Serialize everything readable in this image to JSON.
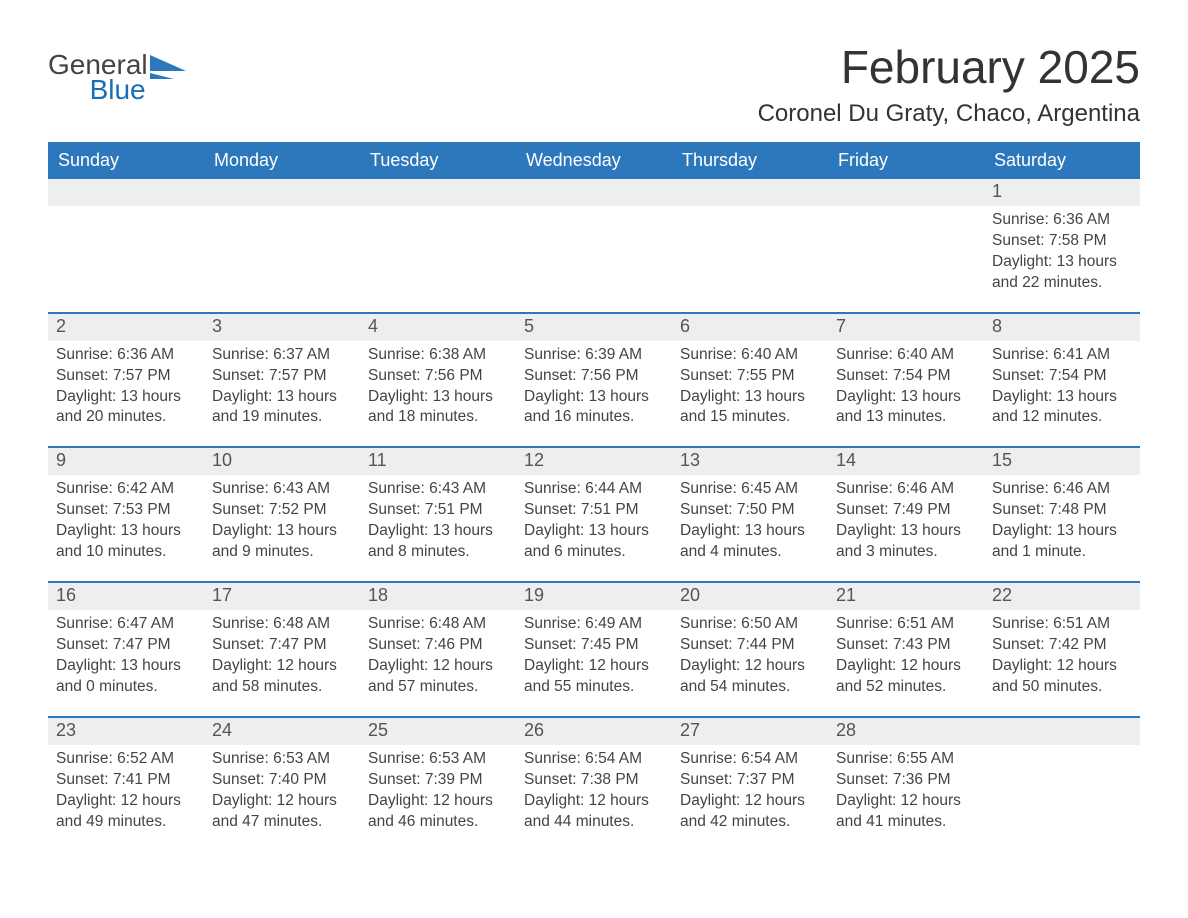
{
  "brand": {
    "general": "General",
    "blue": "Blue"
  },
  "header": {
    "month_title": "February 2025",
    "location": "Coronel Du Graty, Chaco, Argentina"
  },
  "colors": {
    "header_blue": "#2d77bc",
    "band_gray": "#eeeeee",
    "text": "#444444",
    "brand_blue": "#1a6fb5"
  },
  "dow": [
    "Sunday",
    "Monday",
    "Tuesday",
    "Wednesday",
    "Thursday",
    "Friday",
    "Saturday"
  ],
  "weeks": [
    [
      {
        "n": "",
        "sunrise": "",
        "sunset": "",
        "daylight": ""
      },
      {
        "n": "",
        "sunrise": "",
        "sunset": "",
        "daylight": ""
      },
      {
        "n": "",
        "sunrise": "",
        "sunset": "",
        "daylight": ""
      },
      {
        "n": "",
        "sunrise": "",
        "sunset": "",
        "daylight": ""
      },
      {
        "n": "",
        "sunrise": "",
        "sunset": "",
        "daylight": ""
      },
      {
        "n": "",
        "sunrise": "",
        "sunset": "",
        "daylight": ""
      },
      {
        "n": "1",
        "sunrise": "Sunrise: 6:36 AM",
        "sunset": "Sunset: 7:58 PM",
        "daylight": "Daylight: 13 hours and 22 minutes."
      }
    ],
    [
      {
        "n": "2",
        "sunrise": "Sunrise: 6:36 AM",
        "sunset": "Sunset: 7:57 PM",
        "daylight": "Daylight: 13 hours and 20 minutes."
      },
      {
        "n": "3",
        "sunrise": "Sunrise: 6:37 AM",
        "sunset": "Sunset: 7:57 PM",
        "daylight": "Daylight: 13 hours and 19 minutes."
      },
      {
        "n": "4",
        "sunrise": "Sunrise: 6:38 AM",
        "sunset": "Sunset: 7:56 PM",
        "daylight": "Daylight: 13 hours and 18 minutes."
      },
      {
        "n": "5",
        "sunrise": "Sunrise: 6:39 AM",
        "sunset": "Sunset: 7:56 PM",
        "daylight": "Daylight: 13 hours and 16 minutes."
      },
      {
        "n": "6",
        "sunrise": "Sunrise: 6:40 AM",
        "sunset": "Sunset: 7:55 PM",
        "daylight": "Daylight: 13 hours and 15 minutes."
      },
      {
        "n": "7",
        "sunrise": "Sunrise: 6:40 AM",
        "sunset": "Sunset: 7:54 PM",
        "daylight": "Daylight: 13 hours and 13 minutes."
      },
      {
        "n": "8",
        "sunrise": "Sunrise: 6:41 AM",
        "sunset": "Sunset: 7:54 PM",
        "daylight": "Daylight: 13 hours and 12 minutes."
      }
    ],
    [
      {
        "n": "9",
        "sunrise": "Sunrise: 6:42 AM",
        "sunset": "Sunset: 7:53 PM",
        "daylight": "Daylight: 13 hours and 10 minutes."
      },
      {
        "n": "10",
        "sunrise": "Sunrise: 6:43 AM",
        "sunset": "Sunset: 7:52 PM",
        "daylight": "Daylight: 13 hours and 9 minutes."
      },
      {
        "n": "11",
        "sunrise": "Sunrise: 6:43 AM",
        "sunset": "Sunset: 7:51 PM",
        "daylight": "Daylight: 13 hours and 8 minutes."
      },
      {
        "n": "12",
        "sunrise": "Sunrise: 6:44 AM",
        "sunset": "Sunset: 7:51 PM",
        "daylight": "Daylight: 13 hours and 6 minutes."
      },
      {
        "n": "13",
        "sunrise": "Sunrise: 6:45 AM",
        "sunset": "Sunset: 7:50 PM",
        "daylight": "Daylight: 13 hours and 4 minutes."
      },
      {
        "n": "14",
        "sunrise": "Sunrise: 6:46 AM",
        "sunset": "Sunset: 7:49 PM",
        "daylight": "Daylight: 13 hours and 3 minutes."
      },
      {
        "n": "15",
        "sunrise": "Sunrise: 6:46 AM",
        "sunset": "Sunset: 7:48 PM",
        "daylight": "Daylight: 13 hours and 1 minute."
      }
    ],
    [
      {
        "n": "16",
        "sunrise": "Sunrise: 6:47 AM",
        "sunset": "Sunset: 7:47 PM",
        "daylight": "Daylight: 13 hours and 0 minutes."
      },
      {
        "n": "17",
        "sunrise": "Sunrise: 6:48 AM",
        "sunset": "Sunset: 7:47 PM",
        "daylight": "Daylight: 12 hours and 58 minutes."
      },
      {
        "n": "18",
        "sunrise": "Sunrise: 6:48 AM",
        "sunset": "Sunset: 7:46 PM",
        "daylight": "Daylight: 12 hours and 57 minutes."
      },
      {
        "n": "19",
        "sunrise": "Sunrise: 6:49 AM",
        "sunset": "Sunset: 7:45 PM",
        "daylight": "Daylight: 12 hours and 55 minutes."
      },
      {
        "n": "20",
        "sunrise": "Sunrise: 6:50 AM",
        "sunset": "Sunset: 7:44 PM",
        "daylight": "Daylight: 12 hours and 54 minutes."
      },
      {
        "n": "21",
        "sunrise": "Sunrise: 6:51 AM",
        "sunset": "Sunset: 7:43 PM",
        "daylight": "Daylight: 12 hours and 52 minutes."
      },
      {
        "n": "22",
        "sunrise": "Sunrise: 6:51 AM",
        "sunset": "Sunset: 7:42 PM",
        "daylight": "Daylight: 12 hours and 50 minutes."
      }
    ],
    [
      {
        "n": "23",
        "sunrise": "Sunrise: 6:52 AM",
        "sunset": "Sunset: 7:41 PM",
        "daylight": "Daylight: 12 hours and 49 minutes."
      },
      {
        "n": "24",
        "sunrise": "Sunrise: 6:53 AM",
        "sunset": "Sunset: 7:40 PM",
        "daylight": "Daylight: 12 hours and 47 minutes."
      },
      {
        "n": "25",
        "sunrise": "Sunrise: 6:53 AM",
        "sunset": "Sunset: 7:39 PM",
        "daylight": "Daylight: 12 hours and 46 minutes."
      },
      {
        "n": "26",
        "sunrise": "Sunrise: 6:54 AM",
        "sunset": "Sunset: 7:38 PM",
        "daylight": "Daylight: 12 hours and 44 minutes."
      },
      {
        "n": "27",
        "sunrise": "Sunrise: 6:54 AM",
        "sunset": "Sunset: 7:37 PM",
        "daylight": "Daylight: 12 hours and 42 minutes."
      },
      {
        "n": "28",
        "sunrise": "Sunrise: 6:55 AM",
        "sunset": "Sunset: 7:36 PM",
        "daylight": "Daylight: 12 hours and 41 minutes."
      },
      {
        "n": "",
        "sunrise": "",
        "sunset": "",
        "daylight": ""
      }
    ]
  ]
}
